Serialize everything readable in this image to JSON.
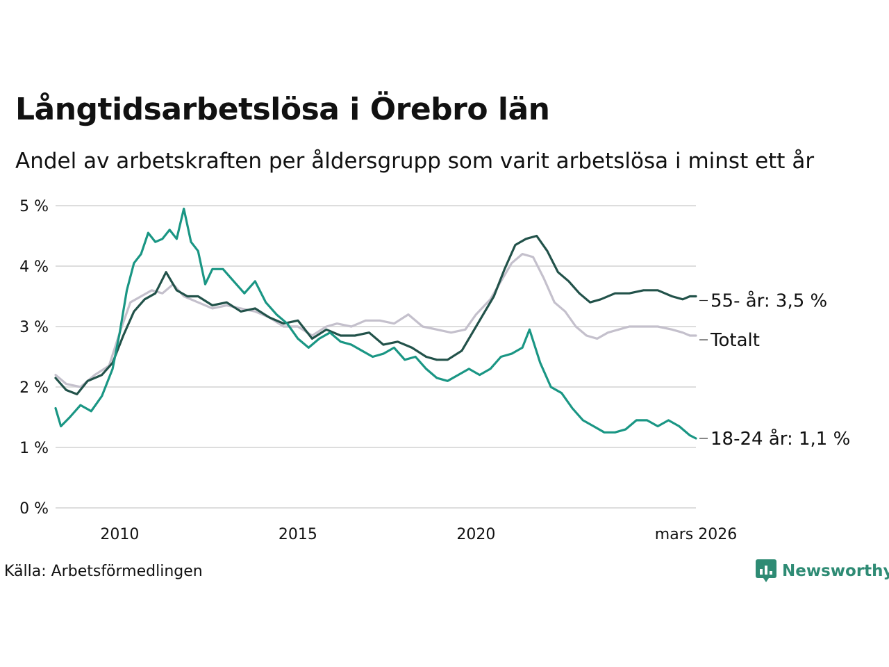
{
  "header": {
    "title": "Långtidsarbetslösa i Örebro län",
    "subtitle": "Andel av arbetskraften per åldersgrupp som varit arbetslösa i minst ett år"
  },
  "footer": {
    "source": "Källa: Arbetsförmedlingen",
    "brand": "Newsworthy"
  },
  "colors": {
    "age55": "#22524a",
    "total": "#c4c0cc",
    "youth": "#1a9684",
    "grid": "#dddddd",
    "brand": "#2e8b74"
  },
  "chart_data": {
    "type": "line",
    "title": "Långtidsarbetslösa i Örebro län",
    "subtitle": "Andel av arbetskraften per åldersgrupp som varit arbetslösa i minst ett år",
    "xlabel": "",
    "ylabel": "",
    "xlim": [
      2008.2,
      2026.17
    ],
    "ylim": [
      0,
      5
    ],
    "y_ticks": [
      0,
      1,
      2,
      3,
      4,
      5
    ],
    "y_tick_labels": [
      "0 %",
      "1 %",
      "2 %",
      "3 %",
      "4 %",
      "5 %"
    ],
    "x_ticks": [
      2010,
      2015,
      2020,
      2026.17
    ],
    "x_tick_labels": [
      "2010",
      "2015",
      "2020",
      "mars 2026"
    ],
    "grid": true,
    "series": [
      {
        "name": "Totalt",
        "end_label": "Totalt",
        "color": "total",
        "points": [
          [
            2008.2,
            2.2
          ],
          [
            2008.5,
            2.05
          ],
          [
            2008.9,
            2.0
          ],
          [
            2009.3,
            2.2
          ],
          [
            2009.7,
            2.35
          ],
          [
            2010.0,
            2.9
          ],
          [
            2010.3,
            3.4
          ],
          [
            2010.6,
            3.5
          ],
          [
            2010.9,
            3.6
          ],
          [
            2011.2,
            3.55
          ],
          [
            2011.5,
            3.7
          ],
          [
            2011.8,
            3.5
          ],
          [
            2012.2,
            3.4
          ],
          [
            2012.6,
            3.3
          ],
          [
            2013.0,
            3.35
          ],
          [
            2013.4,
            3.3
          ],
          [
            2013.8,
            3.25
          ],
          [
            2014.2,
            3.15
          ],
          [
            2014.6,
            3.0
          ],
          [
            2015.0,
            3.0
          ],
          [
            2015.4,
            2.85
          ],
          [
            2015.8,
            3.0
          ],
          [
            2016.1,
            3.05
          ],
          [
            2016.5,
            3.0
          ],
          [
            2016.9,
            3.1
          ],
          [
            2017.3,
            3.1
          ],
          [
            2017.7,
            3.05
          ],
          [
            2018.1,
            3.2
          ],
          [
            2018.5,
            3.0
          ],
          [
            2018.9,
            2.95
          ],
          [
            2019.3,
            2.9
          ],
          [
            2019.7,
            2.95
          ],
          [
            2020.0,
            3.2
          ],
          [
            2020.4,
            3.45
          ],
          [
            2020.7,
            3.75
          ],
          [
            2021.0,
            4.05
          ],
          [
            2021.3,
            4.2
          ],
          [
            2021.6,
            4.15
          ],
          [
            2021.9,
            3.8
          ],
          [
            2022.2,
            3.4
          ],
          [
            2022.5,
            3.25
          ],
          [
            2022.8,
            3.0
          ],
          [
            2023.1,
            2.85
          ],
          [
            2023.4,
            2.8
          ],
          [
            2023.7,
            2.9
          ],
          [
            2024.0,
            2.95
          ],
          [
            2024.3,
            3.0
          ],
          [
            2024.7,
            3.0
          ],
          [
            2025.1,
            3.0
          ],
          [
            2025.5,
            2.95
          ],
          [
            2025.8,
            2.9
          ],
          [
            2026.0,
            2.85
          ],
          [
            2026.17,
            2.85
          ]
        ]
      },
      {
        "name": "55- år",
        "end_label": "55- år: 3,5 %",
        "color": "age55",
        "points": [
          [
            2008.2,
            2.15
          ],
          [
            2008.5,
            1.95
          ],
          [
            2008.8,
            1.88
          ],
          [
            2009.1,
            2.1
          ],
          [
            2009.5,
            2.2
          ],
          [
            2009.8,
            2.4
          ],
          [
            2010.1,
            2.85
          ],
          [
            2010.4,
            3.25
          ],
          [
            2010.7,
            3.45
          ],
          [
            2011.0,
            3.55
          ],
          [
            2011.3,
            3.9
          ],
          [
            2011.6,
            3.6
          ],
          [
            2011.9,
            3.5
          ],
          [
            2012.2,
            3.5
          ],
          [
            2012.6,
            3.35
          ],
          [
            2013.0,
            3.4
          ],
          [
            2013.4,
            3.25
          ],
          [
            2013.8,
            3.3
          ],
          [
            2014.2,
            3.15
          ],
          [
            2014.6,
            3.05
          ],
          [
            2015.0,
            3.1
          ],
          [
            2015.4,
            2.8
          ],
          [
            2015.8,
            2.95
          ],
          [
            2016.2,
            2.85
          ],
          [
            2016.6,
            2.85
          ],
          [
            2017.0,
            2.9
          ],
          [
            2017.4,
            2.7
          ],
          [
            2017.8,
            2.75
          ],
          [
            2018.2,
            2.65
          ],
          [
            2018.6,
            2.5
          ],
          [
            2018.9,
            2.45
          ],
          [
            2019.2,
            2.45
          ],
          [
            2019.6,
            2.6
          ],
          [
            2019.9,
            2.9
          ],
          [
            2020.2,
            3.2
          ],
          [
            2020.5,
            3.5
          ],
          [
            2020.8,
            3.95
          ],
          [
            2021.1,
            4.35
          ],
          [
            2021.4,
            4.45
          ],
          [
            2021.7,
            4.5
          ],
          [
            2022.0,
            4.25
          ],
          [
            2022.3,
            3.9
          ],
          [
            2022.6,
            3.75
          ],
          [
            2022.9,
            3.55
          ],
          [
            2023.2,
            3.4
          ],
          [
            2023.5,
            3.45
          ],
          [
            2023.9,
            3.55
          ],
          [
            2024.3,
            3.55
          ],
          [
            2024.7,
            3.6
          ],
          [
            2025.1,
            3.6
          ],
          [
            2025.5,
            3.5
          ],
          [
            2025.8,
            3.45
          ],
          [
            2026.0,
            3.5
          ],
          [
            2026.17,
            3.5
          ]
        ]
      },
      {
        "name": "18-24 år",
        "end_label": "18-24 år: 1,1 %",
        "color": "youth",
        "points": [
          [
            2008.2,
            1.65
          ],
          [
            2008.35,
            1.35
          ],
          [
            2008.6,
            1.5
          ],
          [
            2008.9,
            1.7
          ],
          [
            2009.2,
            1.6
          ],
          [
            2009.5,
            1.85
          ],
          [
            2009.8,
            2.3
          ],
          [
            2010.0,
            2.9
          ],
          [
            2010.2,
            3.6
          ],
          [
            2010.4,
            4.05
          ],
          [
            2010.6,
            4.2
          ],
          [
            2010.8,
            4.55
          ],
          [
            2011.0,
            4.4
          ],
          [
            2011.2,
            4.45
          ],
          [
            2011.4,
            4.6
          ],
          [
            2011.6,
            4.45
          ],
          [
            2011.8,
            4.95
          ],
          [
            2012.0,
            4.4
          ],
          [
            2012.2,
            4.25
          ],
          [
            2012.4,
            3.7
          ],
          [
            2012.6,
            3.95
          ],
          [
            2012.9,
            3.95
          ],
          [
            2013.2,
            3.75
          ],
          [
            2013.5,
            3.55
          ],
          [
            2013.8,
            3.75
          ],
          [
            2014.1,
            3.4
          ],
          [
            2014.4,
            3.2
          ],
          [
            2014.7,
            3.05
          ],
          [
            2015.0,
            2.8
          ],
          [
            2015.3,
            2.65
          ],
          [
            2015.6,
            2.8
          ],
          [
            2015.9,
            2.9
          ],
          [
            2016.2,
            2.75
          ],
          [
            2016.5,
            2.7
          ],
          [
            2016.8,
            2.6
          ],
          [
            2017.1,
            2.5
          ],
          [
            2017.4,
            2.55
          ],
          [
            2017.7,
            2.65
          ],
          [
            2018.0,
            2.45
          ],
          [
            2018.3,
            2.5
          ],
          [
            2018.6,
            2.3
          ],
          [
            2018.9,
            2.15
          ],
          [
            2019.2,
            2.1
          ],
          [
            2019.5,
            2.2
          ],
          [
            2019.8,
            2.3
          ],
          [
            2020.1,
            2.2
          ],
          [
            2020.4,
            2.3
          ],
          [
            2020.7,
            2.5
          ],
          [
            2021.0,
            2.55
          ],
          [
            2021.3,
            2.65
          ],
          [
            2021.5,
            2.95
          ],
          [
            2021.8,
            2.4
          ],
          [
            2022.1,
            2.0
          ],
          [
            2022.4,
            1.9
          ],
          [
            2022.7,
            1.65
          ],
          [
            2023.0,
            1.45
          ],
          [
            2023.3,
            1.35
          ],
          [
            2023.6,
            1.25
          ],
          [
            2023.9,
            1.25
          ],
          [
            2024.2,
            1.3
          ],
          [
            2024.5,
            1.45
          ],
          [
            2024.8,
            1.45
          ],
          [
            2025.1,
            1.35
          ],
          [
            2025.4,
            1.45
          ],
          [
            2025.7,
            1.35
          ],
          [
            2026.0,
            1.2
          ],
          [
            2026.17,
            1.15
          ]
        ]
      }
    ]
  }
}
